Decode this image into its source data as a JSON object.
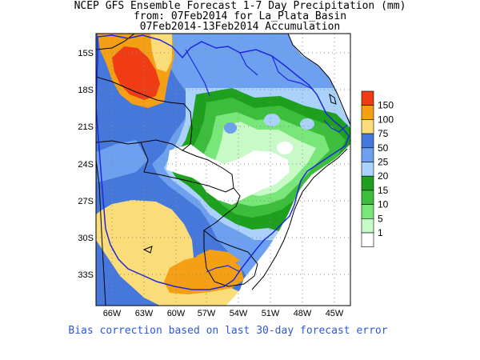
{
  "title": {
    "line1": "NCEP GFS Ensemble Forecast 1-7 Day Precipitation (mm)",
    "line2": "from: 07Feb2014   for La_Plata_Basin",
    "line3": "07Feb2014-13Feb2014 Accumulation"
  },
  "footer": "Bias correction based on last 30-day forecast error",
  "axes": {
    "lat_ticks": [
      "15S",
      "18S",
      "21S",
      "24S",
      "27S",
      "30S",
      "33S"
    ],
    "lon_ticks": [
      "66W",
      "63W",
      "60W",
      "57W",
      "54W",
      "51W",
      "48W",
      "45W"
    ]
  },
  "legend": {
    "labels": [
      "150",
      "100",
      "75",
      "50",
      "25",
      "20",
      "15",
      "10",
      "5",
      "1"
    ],
    "colors": [
      "#f03c14",
      "#f5a014",
      "#fadc78",
      "#4678dc",
      "#6ea0f0",
      "#aad2fa",
      "#1ea01e",
      "#3cbe3c",
      "#78e678",
      "#c8fac8",
      "#ffffff"
    ]
  },
  "colors": {
    "basin_boundary": "#1e28dc",
    "country_border": "#000000",
    "grid": "#888888"
  }
}
